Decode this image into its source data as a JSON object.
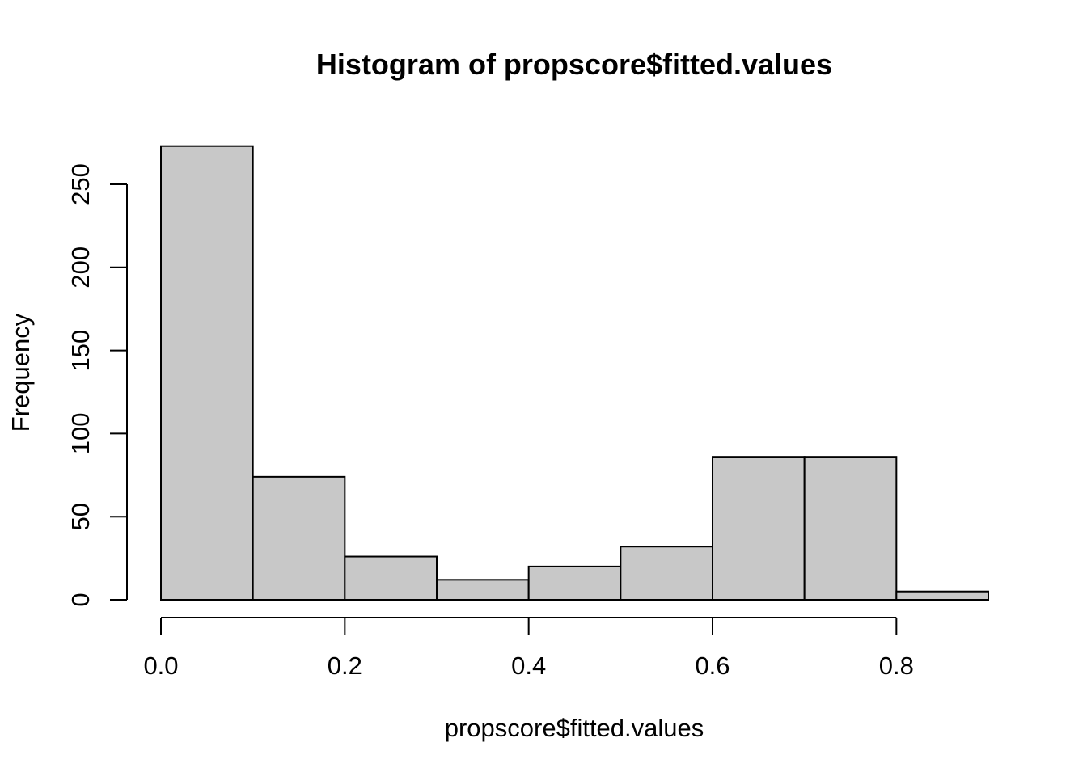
{
  "chart_data": {
    "type": "bar",
    "subtype": "histogram",
    "title": "Histogram of propscore$fitted.values",
    "xlabel": "propscore$fitted.values",
    "ylabel": "Frequency",
    "bins": [
      {
        "from": 0.0,
        "to": 0.1,
        "count": 273
      },
      {
        "from": 0.1,
        "to": 0.2,
        "count": 74
      },
      {
        "from": 0.2,
        "to": 0.3,
        "count": 26
      },
      {
        "from": 0.3,
        "to": 0.4,
        "count": 12
      },
      {
        "from": 0.4,
        "to": 0.5,
        "count": 20
      },
      {
        "from": 0.5,
        "to": 0.6,
        "count": 32
      },
      {
        "from": 0.6,
        "to": 0.7,
        "count": 86
      },
      {
        "from": 0.7,
        "to": 0.8,
        "count": 86
      },
      {
        "from": 0.8,
        "to": 0.9,
        "count": 5
      }
    ],
    "xlim": [
      0.0,
      0.9
    ],
    "ylim": [
      0,
      250
    ],
    "x_ticks": [
      {
        "value": 0.0,
        "label": "0.0"
      },
      {
        "value": 0.2,
        "label": "0.2"
      },
      {
        "value": 0.4,
        "label": "0.4"
      },
      {
        "value": 0.6,
        "label": "0.6"
      },
      {
        "value": 0.8,
        "label": "0.8"
      }
    ],
    "y_ticks": [
      {
        "value": 0,
        "label": "0"
      },
      {
        "value": 50,
        "label": "50"
      },
      {
        "value": 100,
        "label": "100"
      },
      {
        "value": 150,
        "label": "150"
      },
      {
        "value": 200,
        "label": "200"
      },
      {
        "value": 250,
        "label": "250"
      }
    ],
    "grid": false,
    "legend": "none",
    "colors": {
      "bar_fill": "#c8c8c8",
      "bar_stroke": "#000000",
      "axis": "#000000",
      "background": "#ffffff"
    }
  }
}
